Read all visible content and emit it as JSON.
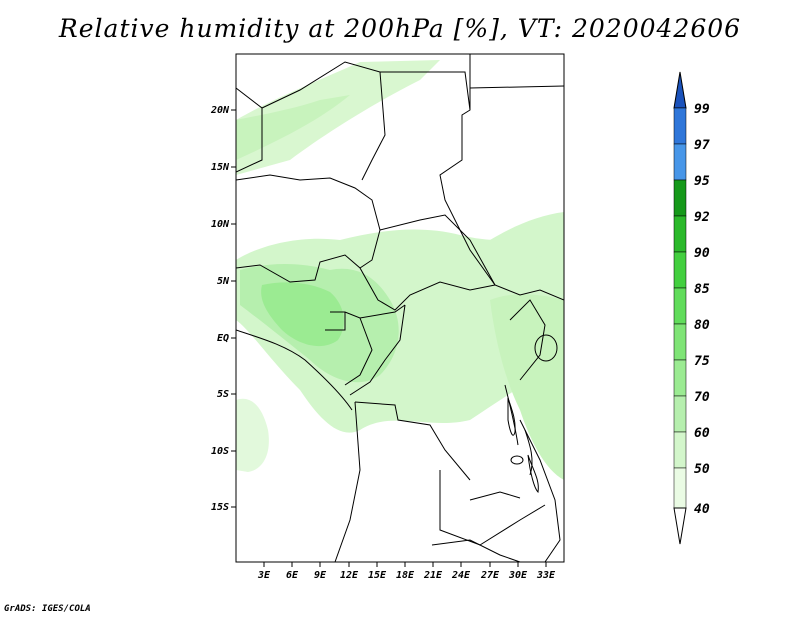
{
  "title": "Relative humidity at 200hPa [%], VT: 2020042606",
  "credit": "GrADS: IGES/COLA",
  "map": {
    "lat_labels": [
      "20N",
      "15N",
      "10N",
      "5N",
      "EQ",
      "5S",
      "10S",
      "15S"
    ],
    "lon_labels": [
      "3E",
      "6E",
      "9E",
      "12E",
      "15E",
      "18E",
      "21E",
      "24E",
      "27E",
      "30E",
      "33E"
    ],
    "land_fill": "#ffffff",
    "border_color": "#000000"
  },
  "colorbar": {
    "levels": [
      "40",
      "50",
      "60",
      "70",
      "75",
      "80",
      "85",
      "90",
      "92",
      "95",
      "97",
      "99"
    ],
    "colors": [
      "#eafbe4",
      "#d3f6cb",
      "#b6efae",
      "#9beb92",
      "#7fe476",
      "#61dc5b",
      "#43cf3f",
      "#2bb92a",
      "#15991a",
      "#4796e8",
      "#2f76d9",
      "#1f5fc8"
    ],
    "under_color": "#ffffff",
    "over_color": "#1a52bb"
  }
}
